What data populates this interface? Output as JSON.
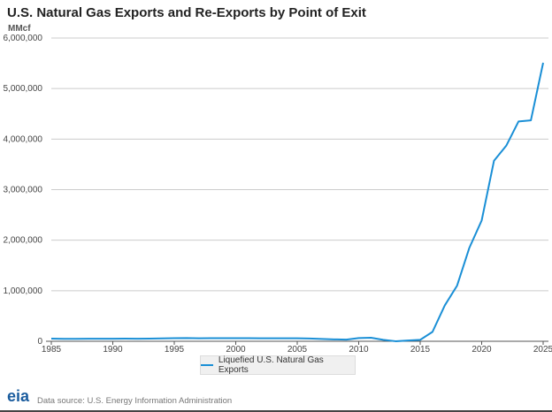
{
  "title": "U.S. Natural Gas Exports and Re-Exports by Point of Exit",
  "unit": "MMcf",
  "source": "Data source: U.S. Energy Information Administration",
  "logo": "eia",
  "chart_data": {
    "type": "line",
    "title": "U.S. Natural Gas Exports and Re-Exports by Point of Exit",
    "ylabel": "MMcf",
    "xlim": [
      1985,
      2025
    ],
    "ylim": [
      0,
      6000000
    ],
    "yticks": [
      0,
      1000000,
      2000000,
      3000000,
      4000000,
      5000000,
      6000000
    ],
    "ytick_labels": [
      "0",
      "1,000,000",
      "2,000,000",
      "3,000,000",
      "4,000,000",
      "5,000,000",
      "6,000,000"
    ],
    "xticks": [
      1985,
      1990,
      1995,
      2000,
      2005,
      2010,
      2015,
      2020,
      2025
    ],
    "grid": true,
    "legend": "bottom",
    "series": [
      {
        "name": "Liquefied U.S. Natural Gas Exports",
        "color": "#1a8fd6",
        "x": [
          1985,
          1986,
          1987,
          1988,
          1989,
          1990,
          1991,
          1992,
          1993,
          1994,
          1995,
          1996,
          1997,
          1998,
          1999,
          2000,
          2001,
          2002,
          2003,
          2004,
          2005,
          2006,
          2007,
          2008,
          2009,
          2010,
          2011,
          2012,
          2013,
          2014,
          2015,
          2016,
          2017,
          2018,
          2019,
          2020,
          2021,
          2022,
          2023,
          2024,
          2025
        ],
        "values": [
          53000,
          49000,
          49000,
          51000,
          50000,
          51000,
          52000,
          51000,
          52000,
          56000,
          61000,
          63000,
          59000,
          61000,
          61000,
          62000,
          61000,
          60000,
          60000,
          58000,
          60000,
          55000,
          45000,
          38000,
          33000,
          64000,
          70000,
          28000,
          1000,
          15000,
          28000,
          186000,
          710000,
          1100000,
          1850000,
          2390000,
          3570000,
          3870000,
          4350000,
          4370000,
          5510000
        ]
      }
    ]
  }
}
